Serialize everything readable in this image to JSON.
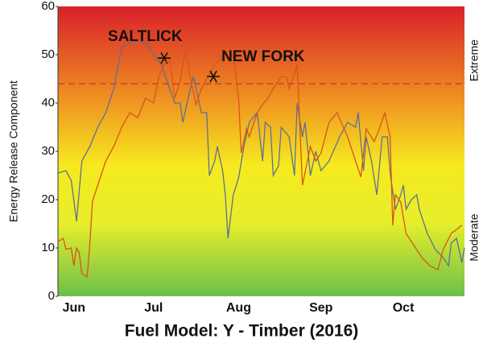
{
  "chart_data": {
    "type": "line",
    "title": "Fuel Model: Y - Timber (2016)",
    "y_label": "Energy Release Component",
    "right_labels": [
      "Extreme",
      "Moderate"
    ],
    "xlim": [
      0,
      153
    ],
    "ylim": [
      0,
      60
    ],
    "xticks": [
      {
        "value": 6,
        "label": "Jun"
      },
      {
        "value": 36,
        "label": "Jul"
      },
      {
        "value": 68,
        "label": "Aug"
      },
      {
        "value": 99,
        "label": "Sep"
      },
      {
        "value": 130,
        "label": "Oct"
      }
    ],
    "yticks": [
      0,
      10,
      20,
      30,
      40,
      50,
      60
    ],
    "reference_line": 44,
    "series": [
      {
        "name": "SALTLICK",
        "color": "#5f6f95",
        "x": [
          0,
          3,
          5,
          7,
          9,
          12,
          15,
          18,
          21,
          24,
          27,
          30,
          33,
          36,
          39,
          42,
          44,
          46,
          47,
          49,
          51,
          54,
          56,
          57,
          59,
          60,
          62,
          63,
          64,
          66,
          68,
          70,
          72,
          75,
          77,
          78,
          80,
          81,
          83,
          84,
          87,
          89,
          90,
          92,
          93,
          95,
          97,
          99,
          102,
          106,
          109,
          112,
          113,
          115,
          116,
          118,
          120,
          122,
          124,
          125,
          127,
          129,
          130,
          131,
          133,
          135,
          136,
          139,
          142,
          145,
          147,
          148,
          150,
          152,
          153
        ],
        "values": [
          25.5,
          26,
          24,
          15.5,
          28,
          31,
          35,
          38,
          43,
          51.5,
          52.5,
          53,
          52.5,
          50,
          48,
          43,
          40,
          40,
          36,
          41,
          45.5,
          38,
          38,
          25,
          28,
          31,
          26,
          21,
          12,
          21,
          24.5,
          31,
          36,
          38,
          28,
          36,
          35,
          25,
          27,
          35,
          33,
          25,
          40,
          33,
          36,
          25,
          30,
          26,
          28,
          33,
          36,
          35,
          38,
          26,
          33,
          28,
          21,
          33,
          33,
          25.5,
          18,
          21,
          23,
          18,
          20,
          21,
          18,
          13,
          9.7,
          8,
          6.3,
          11,
          12,
          7,
          10
        ],
        "marker": {
          "x": 40,
          "y": 49.3
        }
      },
      {
        "name": "NEW FORK",
        "color": "#d9541a",
        "x": [
          0,
          2,
          3,
          5,
          6,
          7,
          8,
          9,
          11,
          12,
          13,
          15,
          18,
          21,
          24,
          27,
          30,
          33,
          36,
          38,
          40,
          42,
          44,
          46,
          48,
          50,
          52,
          54,
          55,
          57,
          59,
          62,
          65,
          66,
          68,
          69,
          71,
          72,
          75,
          77,
          79,
          81,
          84,
          86,
          87,
          89,
          90,
          92,
          95,
          97,
          99,
          102,
          105,
          109,
          112,
          114,
          116,
          119,
          121,
          123,
          125,
          126,
          127,
          129,
          131,
          134,
          137,
          140,
          143,
          145,
          148,
          150,
          152
        ],
        "values": [
          11.3,
          12,
          9.7,
          10,
          6.3,
          10,
          9,
          4.7,
          4,
          11,
          19.7,
          23,
          28,
          31,
          35,
          38,
          37,
          41,
          40,
          45.5,
          48,
          49,
          41,
          44.7,
          51,
          44.7,
          39.7,
          43,
          44,
          46,
          48,
          49.5,
          51,
          49.7,
          41,
          29.7,
          34.7,
          33,
          38,
          39.7,
          41,
          43,
          45.5,
          45.5,
          43,
          46,
          48,
          23,
          31,
          28,
          29.7,
          36,
          38,
          33,
          28,
          24.7,
          34.7,
          32,
          34.7,
          38,
          33,
          14.7,
          21,
          19.5,
          13,
          10.5,
          8,
          6.3,
          5.5,
          9.7,
          13,
          13.8,
          14.7
        ],
        "marker": {
          "x": 58.5,
          "y": 45.5
        }
      }
    ]
  }
}
